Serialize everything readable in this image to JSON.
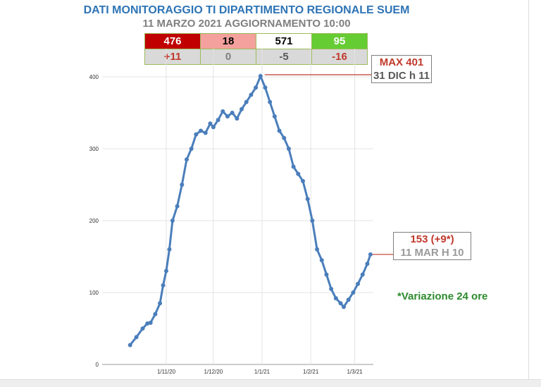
{
  "header": {
    "title": "DATI MONITORAGGIO TI DIPARTIMENTO REGIONALE SUEM",
    "subtitle": "11 MARZO 2021 AGGIORNAMENTO 10:00"
  },
  "stats": [
    {
      "value": "476",
      "change": "+11",
      "bg": "#c00000",
      "color": "#ffffff",
      "change_color": "#c0392b"
    },
    {
      "value": "18",
      "change": "0",
      "bg": "#f4a09c",
      "color": "#000000",
      "change_color": "#7f7f7f"
    },
    {
      "value": "571",
      "change": "-5",
      "bg": "#ffffff",
      "color": "#000000",
      "change_color": "#595959"
    },
    {
      "value": "95",
      "change": "-16",
      "bg": "#66cc33",
      "color": "#ffffff",
      "change_color": "#c0392b"
    }
  ],
  "annotations": {
    "max_value": "MAX 401",
    "max_date": "31 DIC h 11",
    "last_value": "153 (+9*)",
    "last_date": "11 MAR H 10",
    "note": "*Variazione 24 ore"
  },
  "chart_data": {
    "type": "line",
    "title": "",
    "xlabel": "",
    "ylabel": "",
    "ylim": [
      0,
      400
    ],
    "yticks": [
      "0",
      "100",
      "200",
      "300",
      "400"
    ],
    "xticks": [
      {
        "date": "2020-11-01",
        "label": "1/11/20"
      },
      {
        "date": "2020-12-01",
        "label": "1/12/20"
      },
      {
        "date": "2021-01-01",
        "label": "1/1/21"
      },
      {
        "date": "2021-02-01",
        "label": "1/2/21"
      },
      {
        "date": "2021-03-01",
        "label": "1/3/21"
      }
    ],
    "xlim": [
      "2020-09-06",
      "2021-03-25"
    ],
    "grid": true,
    "color": "#4a7ebb",
    "x": [
      "2020-10-09",
      "2020-10-13",
      "2020-10-17",
      "2020-10-20",
      "2020-10-22",
      "2020-10-25",
      "2020-10-28",
      "2020-10-30",
      "2020-11-01",
      "2020-11-03",
      "2020-11-05",
      "2020-11-08",
      "2020-11-11",
      "2020-11-14",
      "2020-11-17",
      "2020-11-20",
      "2020-11-23",
      "2020-11-26",
      "2020-11-29",
      "2020-12-01",
      "2020-12-04",
      "2020-12-07",
      "2020-12-10",
      "2020-12-13",
      "2020-12-16",
      "2020-12-19",
      "2020-12-22",
      "2020-12-25",
      "2020-12-28",
      "2020-12-31",
      "2021-01-03",
      "2021-01-06",
      "2021-01-09",
      "2021-01-12",
      "2021-01-15",
      "2021-01-18",
      "2021-01-21",
      "2021-01-24",
      "2021-01-27",
      "2021-01-30",
      "2021-02-02",
      "2021-02-05",
      "2021-02-08",
      "2021-02-11",
      "2021-02-14",
      "2021-02-17",
      "2021-02-20",
      "2021-02-22",
      "2021-02-25",
      "2021-02-28",
      "2021-03-03",
      "2021-03-06",
      "2021-03-09",
      "2021-03-11"
    ],
    "values": [
      27,
      38,
      50,
      57,
      58,
      70,
      85,
      110,
      130,
      160,
      200,
      220,
      250,
      285,
      300,
      320,
      325,
      322,
      335,
      330,
      340,
      352,
      345,
      350,
      342,
      355,
      365,
      375,
      385,
      401,
      385,
      365,
      345,
      325,
      315,
      300,
      275,
      265,
      255,
      230,
      200,
      160,
      145,
      125,
      105,
      92,
      85,
      80,
      90,
      100,
      112,
      125,
      140,
      153
    ]
  }
}
